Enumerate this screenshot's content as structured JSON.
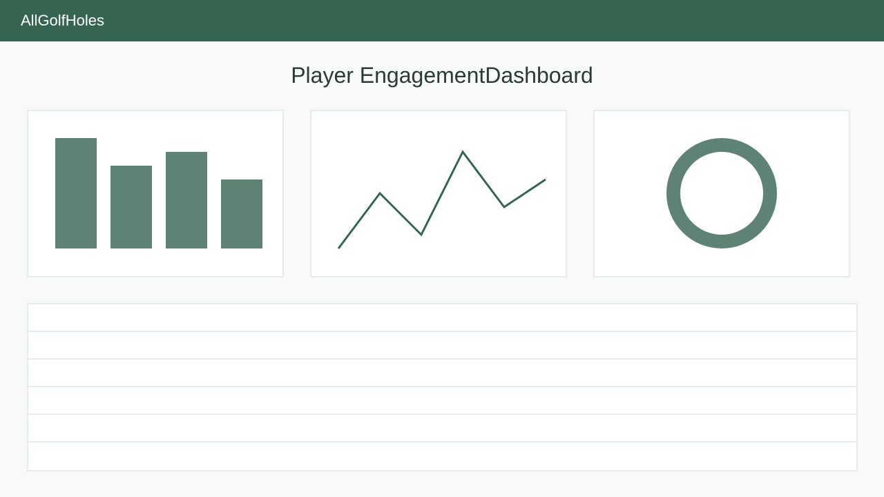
{
  "header": {
    "brand": "AllGolfHoles"
  },
  "main": {
    "title": "Player EngagementDashboard"
  },
  "colors": {
    "header_bg": "#356551",
    "chart_fill": "#5e8374",
    "line_stroke": "#356551",
    "card_border": "#e6ebec"
  },
  "chart_data": [
    {
      "type": "bar",
      "categories": [
        "",
        "",
        "",
        ""
      ],
      "values": [
        8,
        6,
        7,
        5
      ],
      "ylim": [
        0,
        8
      ]
    },
    {
      "type": "line",
      "x": [
        1,
        2,
        3,
        4,
        5,
        6
      ],
      "values": [
        0,
        4,
        1,
        7,
        3,
        5
      ],
      "ylim": [
        0,
        7
      ]
    },
    {
      "type": "pie",
      "values": [
        100
      ],
      "style": "donut"
    }
  ],
  "table": {
    "rows": [
      "",
      "",
      "",
      "",
      "",
      ""
    ]
  }
}
